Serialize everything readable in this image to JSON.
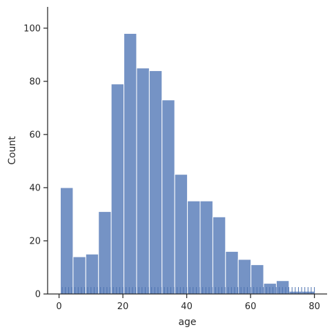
{
  "chart_data": {
    "type": "bar",
    "subtype": "histogram",
    "xlabel": "age",
    "ylabel": "Count",
    "xlim": [
      -3.58,
      83.98
    ],
    "ylim": [
      0,
      108
    ],
    "xticks": [
      0,
      20,
      40,
      60,
      80
    ],
    "yticks": [
      0,
      20,
      40,
      60,
      80,
      100
    ],
    "bin_edges": [
      0.42,
      4.4,
      8.38,
      12.36,
      16.34,
      20.32,
      24.3,
      28.28,
      32.26,
      36.24,
      40.22,
      44.2,
      48.18,
      52.16,
      56.14,
      60.12,
      64.1,
      68.08,
      72.06,
      76.04,
      80.0
    ],
    "counts": [
      40,
      14,
      15,
      31,
      79,
      98,
      85,
      84,
      73,
      45,
      35,
      35,
      29,
      16,
      13,
      11,
      4,
      5,
      1,
      1
    ],
    "rug": true,
    "grid": false,
    "bar_color": "#7593c5",
    "bar_edge_color": "#ffffff",
    "rug_color": "#4c72b0"
  }
}
